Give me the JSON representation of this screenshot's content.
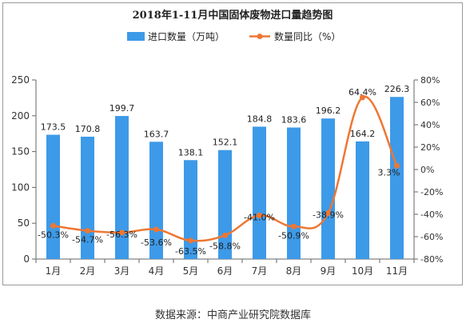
{
  "chart_data": {
    "type": "bar",
    "title": "2018年1-11月中国固体废物进口量趋势图",
    "categories": [
      "1月",
      "2月",
      "3月",
      "4月",
      "5月",
      "6月",
      "7月",
      "8月",
      "9月",
      "10月",
      "11月"
    ],
    "series": [
      {
        "name": "进口数量（万吨）",
        "type": "bar",
        "axis": "left",
        "values": [
          173.5,
          170.8,
          199.7,
          163.7,
          138.1,
          152.1,
          184.8,
          183.6,
          196.2,
          164.2,
          226.3
        ],
        "labels": [
          "173.5",
          "170.8",
          "199.7",
          "163.7",
          "138.1",
          "152.1",
          "184.8",
          "183.6",
          "196.2",
          "164.2",
          "226.3"
        ]
      },
      {
        "name": "数量同比（%）",
        "type": "line",
        "axis": "right",
        "values": [
          -50.3,
          -54.7,
          -56.3,
          -53.6,
          -63.5,
          -58.8,
          -41.0,
          -50.9,
          -38.9,
          64.4,
          3.3
        ],
        "labels": [
          "-50.3%",
          "-54.7%",
          "-56.3%",
          "-53.6%",
          "-63.5%",
          "-58.8%",
          "-41.0%",
          "-50.9%",
          "-38.9%",
          "64.4%",
          "3.3%"
        ]
      }
    ],
    "y_left": {
      "min": 0,
      "max": 250,
      "step": 50,
      "ticks": [
        "0",
        "50",
        "100",
        "150",
        "200",
        "250"
      ]
    },
    "y_right": {
      "min": -80,
      "max": 80,
      "step": 20,
      "ticks": [
        "-80%",
        "-60%",
        "-40%",
        "-20%",
        "0%",
        "20%",
        "40%",
        "60%",
        "80%"
      ]
    },
    "legend": "top-center",
    "grid": false,
    "colors": {
      "bar": "#3d9ae8",
      "line": "#ee7733"
    }
  },
  "source": "数据来源：中商产业研究院数据库"
}
